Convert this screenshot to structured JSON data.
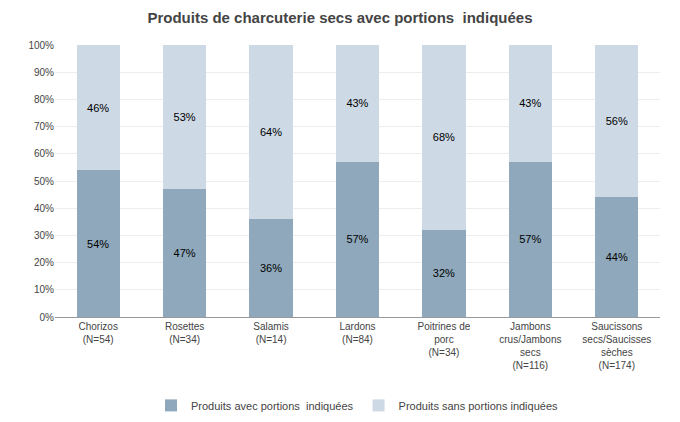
{
  "chart_data": {
    "type": "bar",
    "stacked": true,
    "title": "Produits de charcuterie secs avec portions  indiquées",
    "categories": [
      "Chorizos\n(N=54)",
      "Rosettes\n(N=34)",
      "Salamis\n(N=14)",
      "Lardons\n(N=84)",
      "Poitrines de\nporc\n(N=34)",
      "Jambons\ncrus/Jambons\nsecs\n(N=116)",
      "Saucissons\nsecs/Saucisses\nsèches\n(N=174)"
    ],
    "series": [
      {
        "name": "Produits avec portions  indiquées",
        "color": "#8fa8bb",
        "values": [
          54,
          47,
          36,
          57,
          32,
          57,
          44
        ],
        "value_labels": [
          "54%",
          "47%",
          "36%",
          "57%",
          "32%",
          "57%",
          "44%"
        ]
      },
      {
        "name": "Produits sans portions indiquées",
        "color": "#cdd9e5",
        "values": [
          46,
          53,
          64,
          43,
          68,
          43,
          56
        ],
        "value_labels": [
          "46%",
          "53%",
          "64%",
          "43%",
          "68%",
          "43%",
          "56%"
        ]
      }
    ],
    "data_labels": true,
    "ylim": [
      0,
      100
    ],
    "yticks": [
      {
        "value": 0,
        "label": "0%"
      },
      {
        "value": 10,
        "label": "10%"
      },
      {
        "value": 20,
        "label": "20%"
      },
      {
        "value": 30,
        "label": "30%"
      },
      {
        "value": 40,
        "label": "40%"
      },
      {
        "value": 50,
        "label": "50%"
      },
      {
        "value": 60,
        "label": "60%"
      },
      {
        "value": 70,
        "label": "70%"
      },
      {
        "value": 80,
        "label": "80%"
      },
      {
        "value": 90,
        "label": "90%"
      },
      {
        "value": 100,
        "label": "100%"
      }
    ],
    "grid": true,
    "legend": "bottom"
  }
}
